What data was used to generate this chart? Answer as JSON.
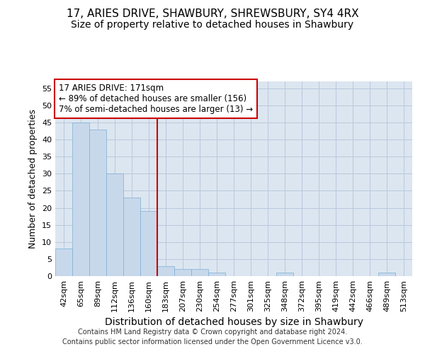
{
  "title1": "17, ARIES DRIVE, SHAWBURY, SHREWSBURY, SY4 4RX",
  "title2": "Size of property relative to detached houses in Shawbury",
  "xlabel": "Distribution of detached houses by size in Shawbury",
  "ylabel": "Number of detached properties",
  "categories": [
    "42sqm",
    "65sqm",
    "89sqm",
    "112sqm",
    "136sqm",
    "160sqm",
    "183sqm",
    "207sqm",
    "230sqm",
    "254sqm",
    "277sqm",
    "301sqm",
    "325sqm",
    "348sqm",
    "372sqm",
    "395sqm",
    "419sqm",
    "442sqm",
    "466sqm",
    "489sqm",
    "513sqm"
  ],
  "values": [
    8,
    45,
    43,
    30,
    23,
    19,
    3,
    2,
    2,
    1,
    0,
    0,
    0,
    1,
    0,
    0,
    0,
    0,
    0,
    1,
    0
  ],
  "bar_color": "#c8d8eb",
  "bar_edge_color": "#7bafd4",
  "vline_x": 6,
  "vline_color": "#cc0000",
  "annotation_line1": "17 ARIES DRIVE: 171sqm",
  "annotation_line2": "← 89% of detached houses are smaller (156)",
  "annotation_line3": "7% of semi-detached houses are larger (13) →",
  "annotation_box_color": "white",
  "annotation_box_edge_color": "#cc0000",
  "ylim": [
    0,
    57
  ],
  "yticks": [
    0,
    5,
    10,
    15,
    20,
    25,
    30,
    35,
    40,
    45,
    50,
    55
  ],
  "grid_color": "#b8c8dc",
  "bg_color": "#dce6f0",
  "footer1": "Contains HM Land Registry data © Crown copyright and database right 2024.",
  "footer2": "Contains public sector information licensed under the Open Government Licence v3.0.",
  "title1_fontsize": 11,
  "title2_fontsize": 10,
  "tick_fontsize": 8,
  "xlabel_fontsize": 10,
  "ylabel_fontsize": 9,
  "annotation_fontsize": 8.5,
  "footer_fontsize": 7
}
